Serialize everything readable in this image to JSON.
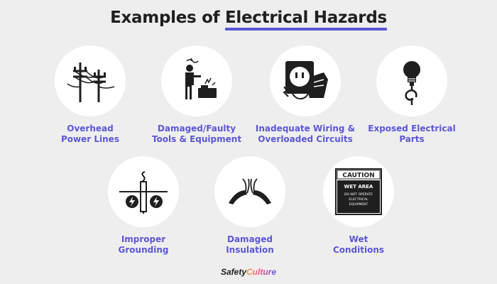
{
  "title": {
    "part1": "Examples of ",
    "highlight": "Electrical Hazards"
  },
  "colors": {
    "accent": "#5b57d6",
    "background": "#eeeeee",
    "icon": "#1f1f1f"
  },
  "hazards": [
    {
      "label": "Overhead\nPower Lines",
      "icon": "power-lines-icon"
    },
    {
      "label": "Damaged/Faulty\nTools & Equipment",
      "icon": "faulty-tool-icon"
    },
    {
      "label": "Inadequate Wiring &\nOverloaded Circuits",
      "icon": "overloaded-outlet-icon"
    },
    {
      "label": "Exposed Electrical\nParts",
      "icon": "exposed-bulb-icon"
    },
    {
      "label": "Improper\nGrounding",
      "icon": "grounding-icon"
    },
    {
      "label": "Damaged\nInsulation",
      "icon": "damaged-insulation-icon"
    },
    {
      "label": "Wet\nConditions",
      "icon": "caution-sign-icon"
    }
  ],
  "caution_sign": {
    "header": "CAUTION",
    "subheader": "WET AREA",
    "line1": "DO NOT OPERATE",
    "line2": "ELECTRICAL",
    "line3": "EQUIPMENT"
  },
  "brand": {
    "part1": "Safety",
    "part2": "Culture"
  }
}
